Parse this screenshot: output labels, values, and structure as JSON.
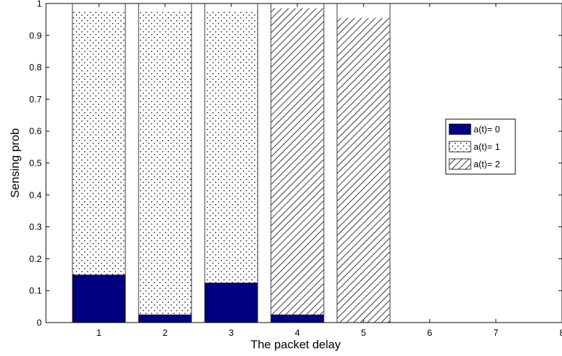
{
  "chart_data": {
    "type": "bar",
    "stacked": true,
    "title": "",
    "xlabel": "The packet delay",
    "ylabel": "Sensing prob",
    "xlim": [
      0.2,
      8
    ],
    "ylim": [
      0,
      1
    ],
    "x_ticks": [
      "1",
      "2",
      "3",
      "4",
      "5",
      "6",
      "7",
      "8"
    ],
    "y_ticks": [
      "0",
      "0.1",
      "0.2",
      "0.3",
      "0.4",
      "0.5",
      "0.6",
      "0.7",
      "0.8",
      "0.9",
      "1"
    ],
    "categories": [
      1,
      2,
      3,
      4,
      5
    ],
    "series": [
      {
        "name": "a(t)= 0",
        "values": [
          0.15,
          0.025,
          0.125,
          0.025,
          0.0
        ],
        "color": "#000080",
        "pattern": "solid"
      },
      {
        "name": "a(t)= 1",
        "values": [
          0.825,
          0.95,
          0.85,
          0.0,
          0.0
        ],
        "color": "#000000",
        "pattern": "dots"
      },
      {
        "name": "a(t)= 2",
        "values": [
          0.0,
          0.0,
          0.0,
          0.96,
          0.955
        ],
        "color": "#000000",
        "pattern": "hatch"
      }
    ],
    "bar_totals": [
      1,
      1,
      1,
      1,
      1
    ],
    "grid": false,
    "legend_position": "right"
  }
}
